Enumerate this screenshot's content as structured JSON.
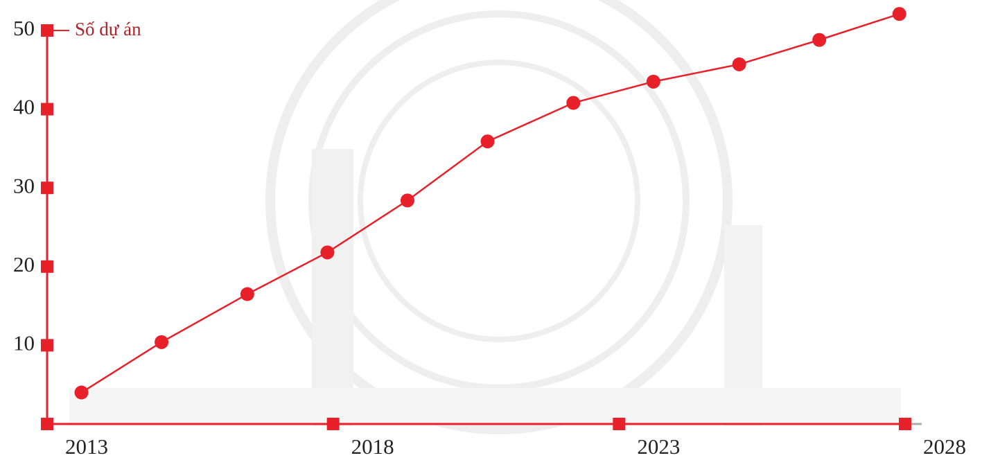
{
  "chart_data": {
    "type": "line",
    "y_label": "Số dự án",
    "x": [
      2013.6,
      2015.0,
      2016.5,
      2017.9,
      2019.3,
      2020.7,
      2022.2,
      2023.6,
      2025.1,
      2026.5,
      2027.9
    ],
    "series": [
      {
        "name": "Số dự án",
        "color": "#e8202a",
        "values": [
          4,
          10.4,
          16.5,
          21.8,
          28.4,
          35.9,
          40.8,
          43.5,
          45.7,
          48.8,
          52.1
        ]
      }
    ],
    "xlim": [
      2013,
      2028
    ],
    "xticks": [
      2013,
      2018,
      2023,
      2028
    ],
    "ylim": [
      0,
      50
    ],
    "yticks": [
      10,
      20,
      30,
      40,
      50
    ]
  }
}
